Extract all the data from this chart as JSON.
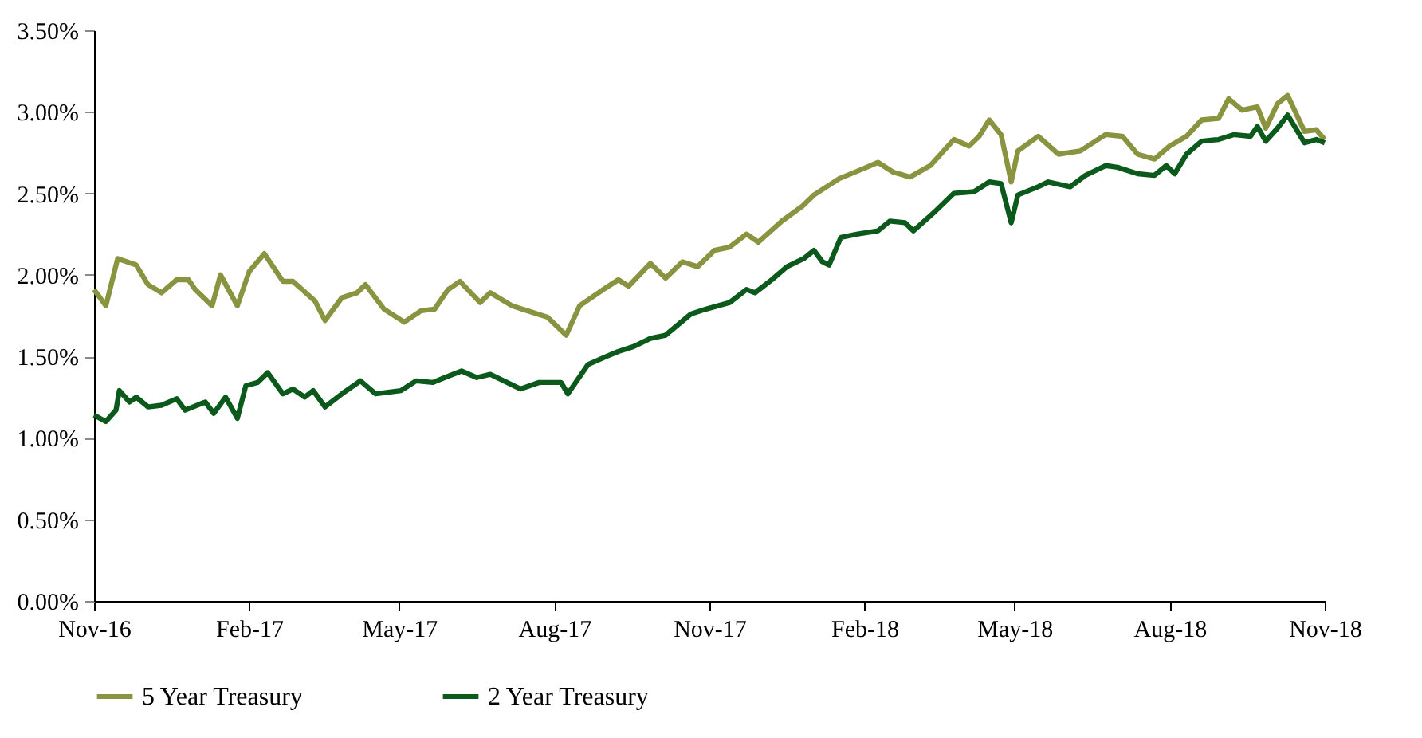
{
  "chart_data": {
    "type": "line",
    "xlim": [
      "2016-11-01",
      "2018-11-01"
    ],
    "xticks": [
      {
        "value": "2016-11-01",
        "label": "Nov-16"
      },
      {
        "value": "2017-02-01",
        "label": "Feb-17"
      },
      {
        "value": "2017-05-01",
        "label": "May-17"
      },
      {
        "value": "2017-08-01",
        "label": "Aug-17"
      },
      {
        "value": "2017-11-01",
        "label": "Nov-17"
      },
      {
        "value": "2018-02-01",
        "label": "Feb-18"
      },
      {
        "value": "2018-05-01",
        "label": "May-18"
      },
      {
        "value": "2018-08-01",
        "label": "Aug-18"
      },
      {
        "value": "2018-11-01",
        "label": "Nov-18"
      }
    ],
    "ylim": [
      0,
      3.5
    ],
    "yticks": [
      {
        "value": 0,
        "label": "0.00%"
      },
      {
        "value": 0.5,
        "label": "0.50%"
      },
      {
        "value": 1,
        "label": "1.00%"
      },
      {
        "value": 1.5,
        "label": "1.50%"
      },
      {
        "value": 2,
        "label": "2.00%"
      },
      {
        "value": 2.5,
        "label": "2.50%"
      },
      {
        "value": 3,
        "label": "3.00%"
      },
      {
        "value": 3.5,
        "label": "3.50%"
      }
    ],
    "grid": false,
    "legend": "bottom",
    "line_style": "solid",
    "marker": "none",
    "series": [
      {
        "name": "5 Year Treasury",
        "color": "#8a9440",
        "x": [
          "2016-11-01",
          "2016-11-08",
          "2016-11-15",
          "2016-11-26",
          "2016-12-03",
          "2016-12-11",
          "2016-12-20",
          "2016-12-27",
          "2016-12-31",
          "2017-01-10",
          "2017-01-15",
          "2017-01-25",
          "2017-02-01",
          "2017-02-10",
          "2017-02-21",
          "2017-02-27",
          "2017-03-12",
          "2017-03-18",
          "2017-03-28",
          "2017-04-06",
          "2017-04-11",
          "2017-04-22",
          "2017-05-04",
          "2017-05-14",
          "2017-05-22",
          "2017-05-30",
          "2017-06-06",
          "2017-06-18",
          "2017-06-24",
          "2017-07-07",
          "2017-07-16",
          "2017-07-28",
          "2017-08-08",
          "2017-08-16",
          "2017-08-30",
          "2017-09-08",
          "2017-09-14",
          "2017-09-27",
          "2017-10-06",
          "2017-10-16",
          "2017-10-25",
          "2017-11-04",
          "2017-11-13",
          "2017-11-23",
          "2017-11-30",
          "2017-12-14",
          "2017-12-26",
          "2018-01-02",
          "2018-01-17",
          "2018-01-31",
          "2018-02-09",
          "2018-02-18",
          "2018-02-28",
          "2018-03-12",
          "2018-03-26",
          "2018-04-04",
          "2018-04-10",
          "2018-04-16",
          "2018-04-23",
          "2018-04-29",
          "2018-05-03",
          "2018-05-15",
          "2018-05-27",
          "2018-06-09",
          "2018-06-24",
          "2018-07-04",
          "2018-07-13",
          "2018-07-23",
          "2018-08-01",
          "2018-08-11",
          "2018-08-20",
          "2018-08-30",
          "2018-09-05",
          "2018-09-13",
          "2018-09-22",
          "2018-09-27",
          "2018-10-04",
          "2018-10-10",
          "2018-10-20",
          "2018-10-27",
          "2018-11-01"
        ],
        "values": [
          1.91,
          1.81,
          2.1,
          2.06,
          1.94,
          1.89,
          1.97,
          1.97,
          1.91,
          1.81,
          2.0,
          1.81,
          2.02,
          2.13,
          1.96,
          1.96,
          1.84,
          1.72,
          1.86,
          1.89,
          1.94,
          1.79,
          1.71,
          1.78,
          1.79,
          1.91,
          1.96,
          1.83,
          1.89,
          1.81,
          1.78,
          1.74,
          1.63,
          1.81,
          1.91,
          1.97,
          1.93,
          2.07,
          1.98,
          2.08,
          2.05,
          2.15,
          2.17,
          2.25,
          2.2,
          2.33,
          2.42,
          2.49,
          2.59,
          2.65,
          2.69,
          2.63,
          2.6,
          2.67,
          2.83,
          2.79,
          2.85,
          2.95,
          2.86,
          2.57,
          2.76,
          2.85,
          2.74,
          2.76,
          2.86,
          2.85,
          2.74,
          2.71,
          2.79,
          2.85,
          2.95,
          2.96,
          3.08,
          3.01,
          3.03,
          2.9,
          3.05,
          3.1,
          2.88,
          2.89,
          2.83
        ]
      },
      {
        "name": "2 Year Treasury",
        "color": "#0b5a1c",
        "x": [
          "2016-11-01",
          "2016-11-08",
          "2016-11-14",
          "2016-11-16",
          "2016-11-22",
          "2016-11-26",
          "2016-12-03",
          "2016-12-11",
          "2016-12-20",
          "2016-12-25",
          "2017-01-06",
          "2017-01-11",
          "2017-01-18",
          "2017-01-25",
          "2017-01-30",
          "2017-02-06",
          "2017-02-12",
          "2017-02-21",
          "2017-02-27",
          "2017-03-06",
          "2017-03-11",
          "2017-03-18",
          "2017-03-28",
          "2017-04-08",
          "2017-04-17",
          "2017-05-02",
          "2017-05-11",
          "2017-05-21",
          "2017-05-28",
          "2017-06-07",
          "2017-06-16",
          "2017-06-24",
          "2017-07-04",
          "2017-07-12",
          "2017-07-23",
          "2017-08-05",
          "2017-08-09",
          "2017-08-21",
          "2017-09-01",
          "2017-09-08",
          "2017-09-17",
          "2017-09-27",
          "2017-10-06",
          "2017-10-21",
          "2017-10-30",
          "2017-11-13",
          "2017-11-23",
          "2017-11-28",
          "2017-12-08",
          "2017-12-17",
          "2017-12-27",
          "2018-01-02",
          "2018-01-07",
          "2018-01-11",
          "2018-01-18",
          "2018-01-28",
          "2018-02-09",
          "2018-02-16",
          "2018-02-25",
          "2018-03-02",
          "2018-03-15",
          "2018-03-26",
          "2018-04-07",
          "2018-04-16",
          "2018-04-23",
          "2018-04-29",
          "2018-05-03",
          "2018-05-15",
          "2018-05-21",
          "2018-06-03",
          "2018-06-12",
          "2018-06-24",
          "2018-07-01",
          "2018-07-13",
          "2018-07-23",
          "2018-07-30",
          "2018-08-04",
          "2018-08-11",
          "2018-08-20",
          "2018-08-30",
          "2018-09-08",
          "2018-09-18",
          "2018-09-22",
          "2018-09-27",
          "2018-10-04",
          "2018-10-10",
          "2018-10-20",
          "2018-10-27",
          "2018-11-01"
        ],
        "values": [
          1.14,
          1.1,
          1.17,
          1.29,
          1.22,
          1.25,
          1.19,
          1.2,
          1.24,
          1.17,
          1.22,
          1.15,
          1.25,
          1.12,
          1.32,
          1.34,
          1.4,
          1.27,
          1.3,
          1.25,
          1.29,
          1.19,
          1.27,
          1.35,
          1.27,
          1.29,
          1.35,
          1.34,
          1.37,
          1.41,
          1.37,
          1.39,
          1.34,
          1.3,
          1.34,
          1.34,
          1.27,
          1.45,
          1.5,
          1.53,
          1.56,
          1.61,
          1.63,
          1.76,
          1.79,
          1.83,
          1.91,
          1.89,
          1.97,
          2.05,
          2.1,
          2.15,
          2.08,
          2.06,
          2.23,
          2.25,
          2.27,
          2.33,
          2.32,
          2.27,
          2.39,
          2.5,
          2.51,
          2.57,
          2.56,
          2.32,
          2.49,
          2.54,
          2.57,
          2.54,
          2.61,
          2.67,
          2.66,
          2.62,
          2.61,
          2.67,
          2.62,
          2.74,
          2.82,
          2.83,
          2.86,
          2.85,
          2.91,
          2.82,
          2.9,
          2.98,
          2.81,
          2.83,
          2.81
        ]
      }
    ]
  }
}
